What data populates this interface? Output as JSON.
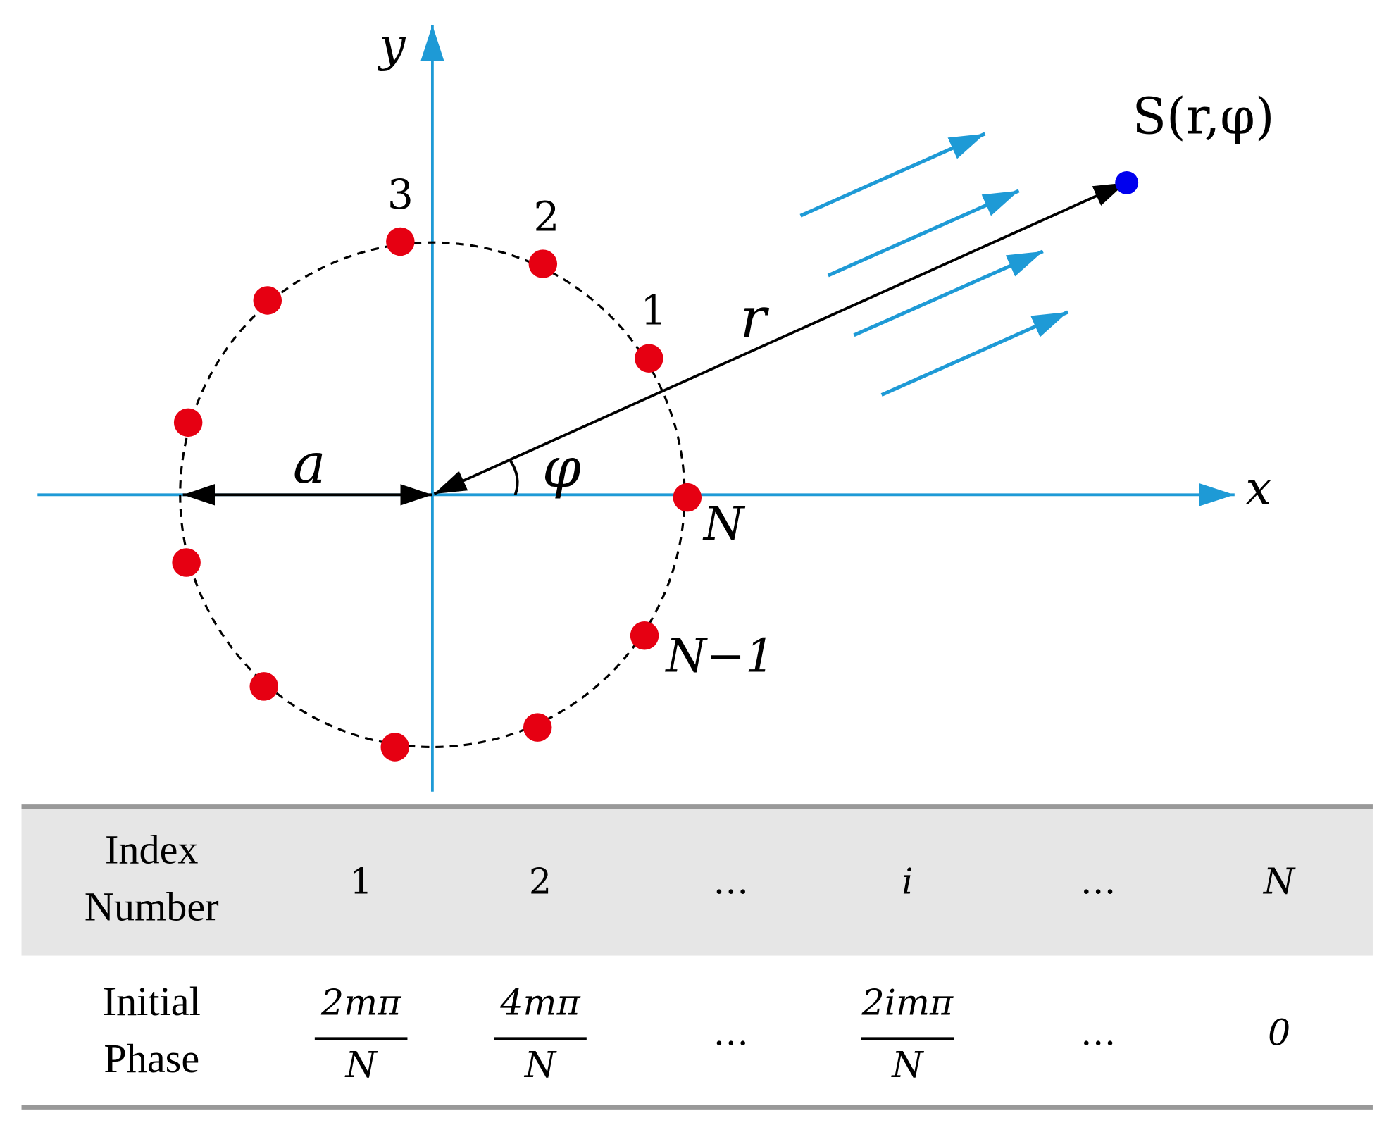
{
  "diagram": {
    "axis_labels": {
      "x": "x",
      "y": "y"
    },
    "radius_label": "a",
    "angle_label": "φ",
    "distance_label": "r",
    "source_label": "S(r,φ)",
    "element_labels": [
      "1",
      "2",
      "3",
      "N",
      "N−1"
    ]
  },
  "table": {
    "rows": [
      [
        [
          "Index",
          "Number"
        ],
        "1",
        "2",
        "…",
        "i",
        "…",
        "N"
      ],
      [
        [
          "Initial",
          "Phase"
        ],
        {
          "numerator": "2mπ",
          "denominator": "N"
        },
        {
          "numerator": "4mπ",
          "denominator": "N"
        },
        "…",
        {
          "numerator": "2imπ",
          "denominator": "N"
        },
        "…",
        "0"
      ]
    ]
  }
}
